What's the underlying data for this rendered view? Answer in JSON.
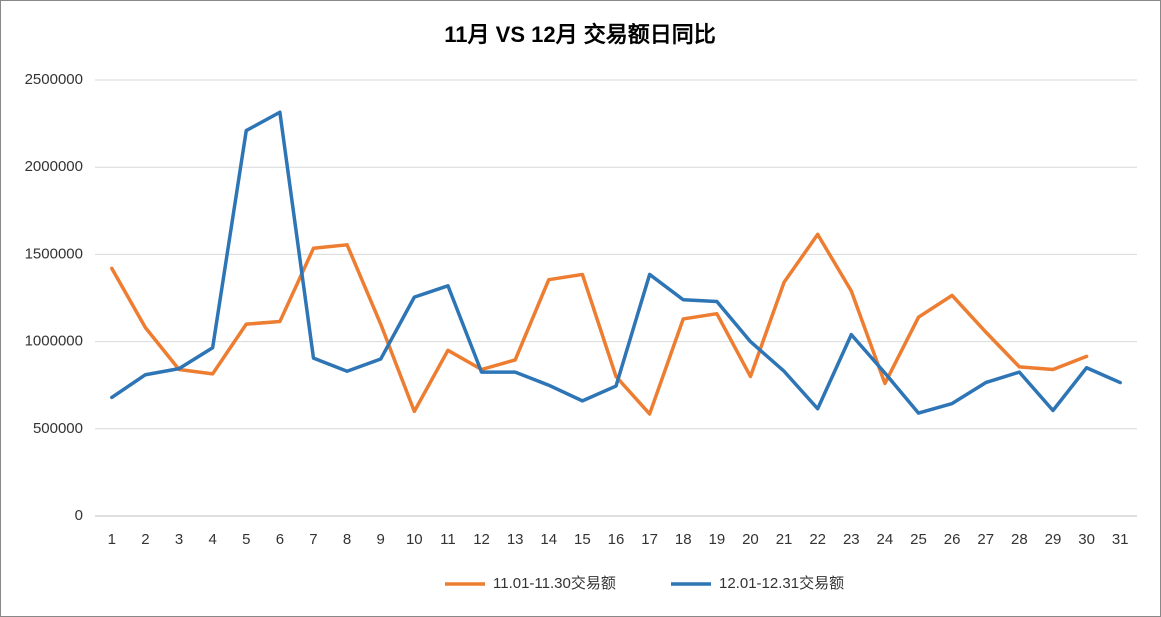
{
  "chart_data": {
    "type": "line",
    "title": "11月 VS 12月 交易额日同比",
    "categories": [
      "1",
      "2",
      "3",
      "4",
      "5",
      "6",
      "7",
      "8",
      "9",
      "10",
      "11",
      "12",
      "13",
      "14",
      "15",
      "16",
      "17",
      "18",
      "19",
      "20",
      "21",
      "22",
      "23",
      "24",
      "25",
      "26",
      "27",
      "28",
      "29",
      "30",
      "31"
    ],
    "series": [
      {
        "name": "11.01-11.30交易额",
        "color": "#ed7d31",
        "values": [
          1420000,
          1080000,
          840000,
          815000,
          1100000,
          1115000,
          1535000,
          1555000,
          1100000,
          600000,
          950000,
          840000,
          895000,
          1355000,
          1385000,
          800000,
          585000,
          1130000,
          1160000,
          800000,
          1340000,
          1615000,
          1290000,
          760000,
          1140000,
          1265000,
          1055000,
          855000,
          840000,
          915000,
          null
        ]
      },
      {
        "name": "12.01-12.31交易额",
        "color": "#2e75b6",
        "values": [
          680000,
          810000,
          845000,
          965000,
          2210000,
          2315000,
          905000,
          830000,
          900000,
          1255000,
          1320000,
          825000,
          825000,
          750000,
          660000,
          745000,
          1385000,
          1240000,
          1230000,
          1000000,
          830000,
          615000,
          1040000,
          820000,
          590000,
          645000,
          765000,
          825000,
          605000,
          850000,
          765000
        ]
      }
    ],
    "ylim": [
      0,
      2500000
    ],
    "yticks": [
      0,
      500000,
      1000000,
      1500000,
      2000000,
      2500000
    ],
    "grid": true,
    "legend": "bottom"
  }
}
